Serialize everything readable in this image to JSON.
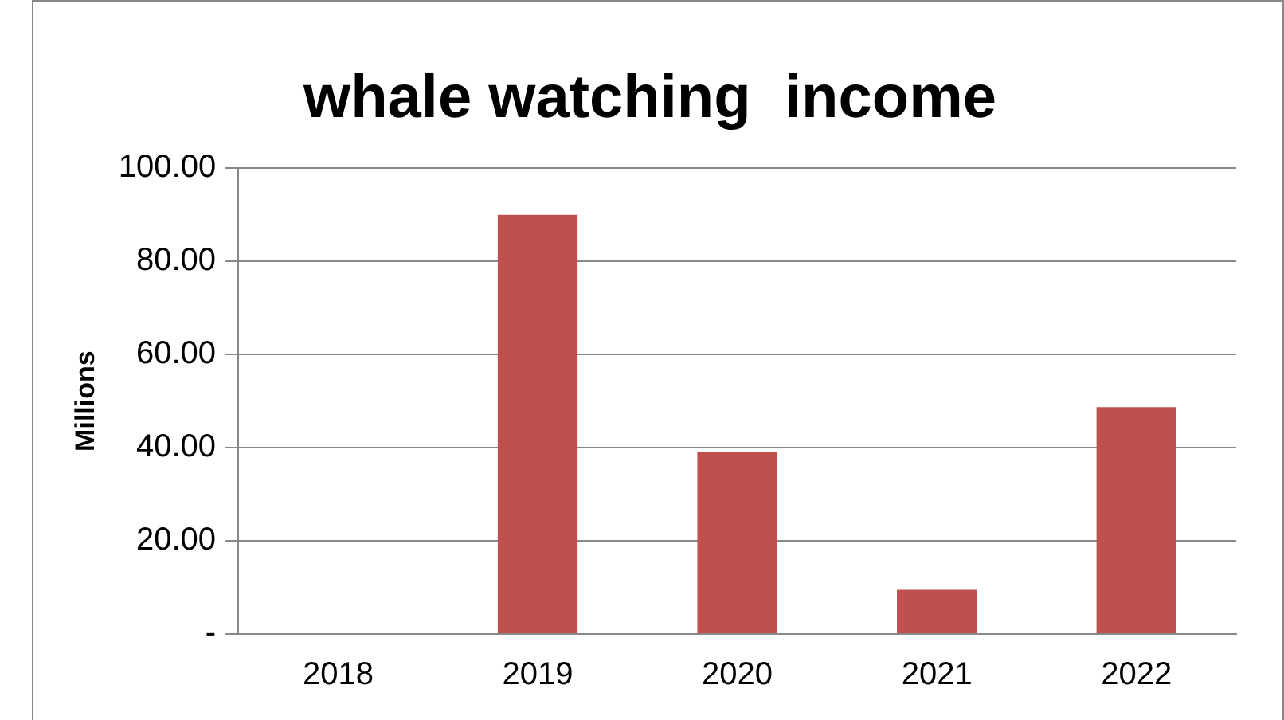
{
  "chart_data": {
    "type": "bar",
    "title": "whale watching  income",
    "ylabel": "Millions",
    "categories": [
      "2018",
      "2019",
      "2020",
      "2021",
      "2022"
    ],
    "values": [
      0,
      90,
      39,
      9.5,
      48.7
    ],
    "color": "#c0504d",
    "ylim": [
      0,
      100
    ],
    "yticks": [
      {
        "value": 0,
        "label": "-"
      },
      {
        "value": 20,
        "label": "20.00"
      },
      {
        "value": 40,
        "label": "40.00"
      },
      {
        "value": 60,
        "label": "60.00"
      },
      {
        "value": 80,
        "label": "80.00"
      },
      {
        "value": 100,
        "label": "100.00"
      }
    ],
    "grid": "y",
    "legend": false
  }
}
